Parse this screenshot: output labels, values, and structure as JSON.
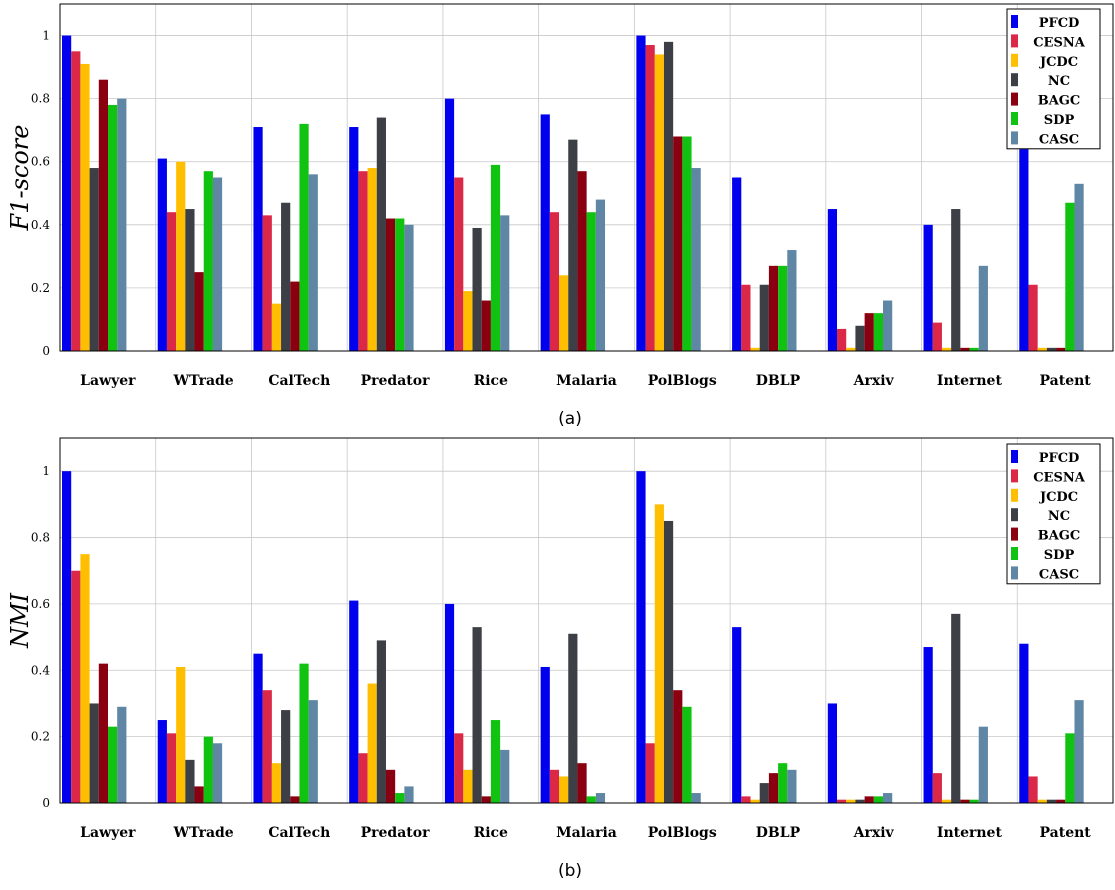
{
  "chart_data": [
    {
      "type": "bar",
      "caption": "(a)",
      "ylabel": "F1-score",
      "xlabel": "",
      "ylim": [
        0,
        1.1
      ],
      "yticks": [
        "0",
        "0.2",
        "0.4",
        "0.6",
        "0.8",
        "1"
      ],
      "grid": true,
      "legend": "top-right",
      "categories": [
        "Lawyer",
        "WTrade",
        "CalTech",
        "Predator",
        "Rice",
        "Malaria",
        "PolBlogs",
        "DBLP",
        "Arxiv",
        "Internet",
        "Patent"
      ],
      "series": [
        {
          "name": "PFCD",
          "color": "#0000ee",
          "values": [
            1.0,
            0.61,
            0.71,
            0.71,
            0.8,
            0.75,
            1.0,
            0.55,
            0.45,
            0.4,
            0.64
          ]
        },
        {
          "name": "CESNA",
          "color": "#dc2847",
          "values": [
            0.95,
            0.44,
            0.43,
            0.57,
            0.55,
            0.44,
            0.97,
            0.21,
            0.07,
            0.09,
            0.21
          ]
        },
        {
          "name": "JCDC",
          "color": "#ffbf00",
          "values": [
            0.91,
            0.6,
            0.15,
            0.58,
            0.19,
            0.24,
            0.94,
            0.01,
            0.01,
            0.01,
            0.01
          ]
        },
        {
          "name": "NC",
          "color": "#3c3f45",
          "values": [
            0.58,
            0.45,
            0.47,
            0.74,
            0.39,
            0.67,
            0.98,
            0.21,
            0.08,
            0.45,
            0.01
          ]
        },
        {
          "name": "BAGC",
          "color": "#8b0010",
          "values": [
            0.86,
            0.25,
            0.22,
            0.42,
            0.16,
            0.57,
            0.68,
            0.27,
            0.12,
            0.01,
            0.01
          ]
        },
        {
          "name": "SDP",
          "color": "#10c310",
          "values": [
            0.78,
            0.57,
            0.72,
            0.42,
            0.59,
            0.44,
            0.68,
            0.27,
            0.12,
            0.01,
            0.47
          ]
        },
        {
          "name": "CASC",
          "color": "#5f87a5",
          "values": [
            0.8,
            0.55,
            0.56,
            0.4,
            0.43,
            0.48,
            0.58,
            0.32,
            0.16,
            0.27,
            0.53
          ]
        }
      ]
    },
    {
      "type": "bar",
      "caption": "(b)",
      "ylabel": "NMI",
      "xlabel": "",
      "ylim": [
        0,
        1.1
      ],
      "yticks": [
        "0",
        "0.2",
        "0.4",
        "0.6",
        "0.8",
        "1"
      ],
      "grid": true,
      "legend": "top-right",
      "categories": [
        "Lawyer",
        "WTrade",
        "CalTech",
        "Predator",
        "Rice",
        "Malaria",
        "PolBlogs",
        "DBLP",
        "Arxiv",
        "Internet",
        "Patent"
      ],
      "series": [
        {
          "name": "PFCD",
          "color": "#0000ee",
          "values": [
            1.0,
            0.25,
            0.45,
            0.61,
            0.6,
            0.41,
            1.0,
            0.53,
            0.3,
            0.47,
            0.48
          ]
        },
        {
          "name": "CESNA",
          "color": "#dc2847",
          "values": [
            0.7,
            0.21,
            0.34,
            0.15,
            0.21,
            0.1,
            0.18,
            0.02,
            0.01,
            0.09,
            0.08
          ]
        },
        {
          "name": "JCDC",
          "color": "#ffbf00",
          "values": [
            0.75,
            0.41,
            0.12,
            0.36,
            0.1,
            0.08,
            0.9,
            0.01,
            0.01,
            0.01,
            0.01
          ]
        },
        {
          "name": "NC",
          "color": "#3c3f45",
          "values": [
            0.3,
            0.13,
            0.28,
            0.49,
            0.53,
            0.51,
            0.85,
            0.06,
            0.01,
            0.57,
            0.01
          ]
        },
        {
          "name": "BAGC",
          "color": "#8b0010",
          "values": [
            0.42,
            0.05,
            0.02,
            0.1,
            0.02,
            0.12,
            0.34,
            0.09,
            0.02,
            0.01,
            0.01
          ]
        },
        {
          "name": "SDP",
          "color": "#10c310",
          "values": [
            0.23,
            0.2,
            0.42,
            0.03,
            0.25,
            0.02,
            0.29,
            0.12,
            0.02,
            0.01,
            0.21
          ]
        },
        {
          "name": "CASC",
          "color": "#5f87a5",
          "values": [
            0.29,
            0.18,
            0.31,
            0.05,
            0.16,
            0.03,
            0.03,
            0.1,
            0.03,
            0.23,
            0.31
          ]
        }
      ]
    }
  ]
}
